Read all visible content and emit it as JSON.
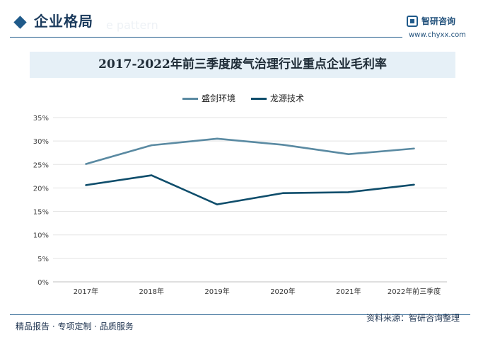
{
  "header": {
    "section_title": "企业格局",
    "ghost_text": "e pattern",
    "brand_name": "智研咨询",
    "brand_url": "www.chyxx.com"
  },
  "chart_data": {
    "type": "line",
    "title": "2017-2022年前三季度废气治理行业重点企业毛利率",
    "categories": [
      "2017年",
      "2018年",
      "2019年",
      "2020年",
      "2021年",
      "2022年前三季度"
    ],
    "series": [
      {
        "name": "盛剑环境",
        "values": [
          25.1,
          29.1,
          30.5,
          29.2,
          27.2,
          28.4
        ],
        "color": "#5a8aa2"
      },
      {
        "name": "龙源技术",
        "values": [
          20.6,
          22.7,
          16.5,
          18.9,
          19.1,
          20.7
        ],
        "color": "#0e4d6b"
      }
    ],
    "yticks": [
      "0%",
      "5%",
      "10%",
      "15%",
      "20%",
      "25%",
      "30%",
      "35%"
    ],
    "ylim": [
      0,
      35
    ],
    "grid": true,
    "legend_position": "top-center"
  },
  "footer": {
    "left_text": "精品报告 · 专项定制 · 品质服务",
    "source_text": "资料来源：智研咨询整理"
  },
  "colors": {
    "accent": "#1f5a8a",
    "banner_bg": "#e6f0f7"
  }
}
